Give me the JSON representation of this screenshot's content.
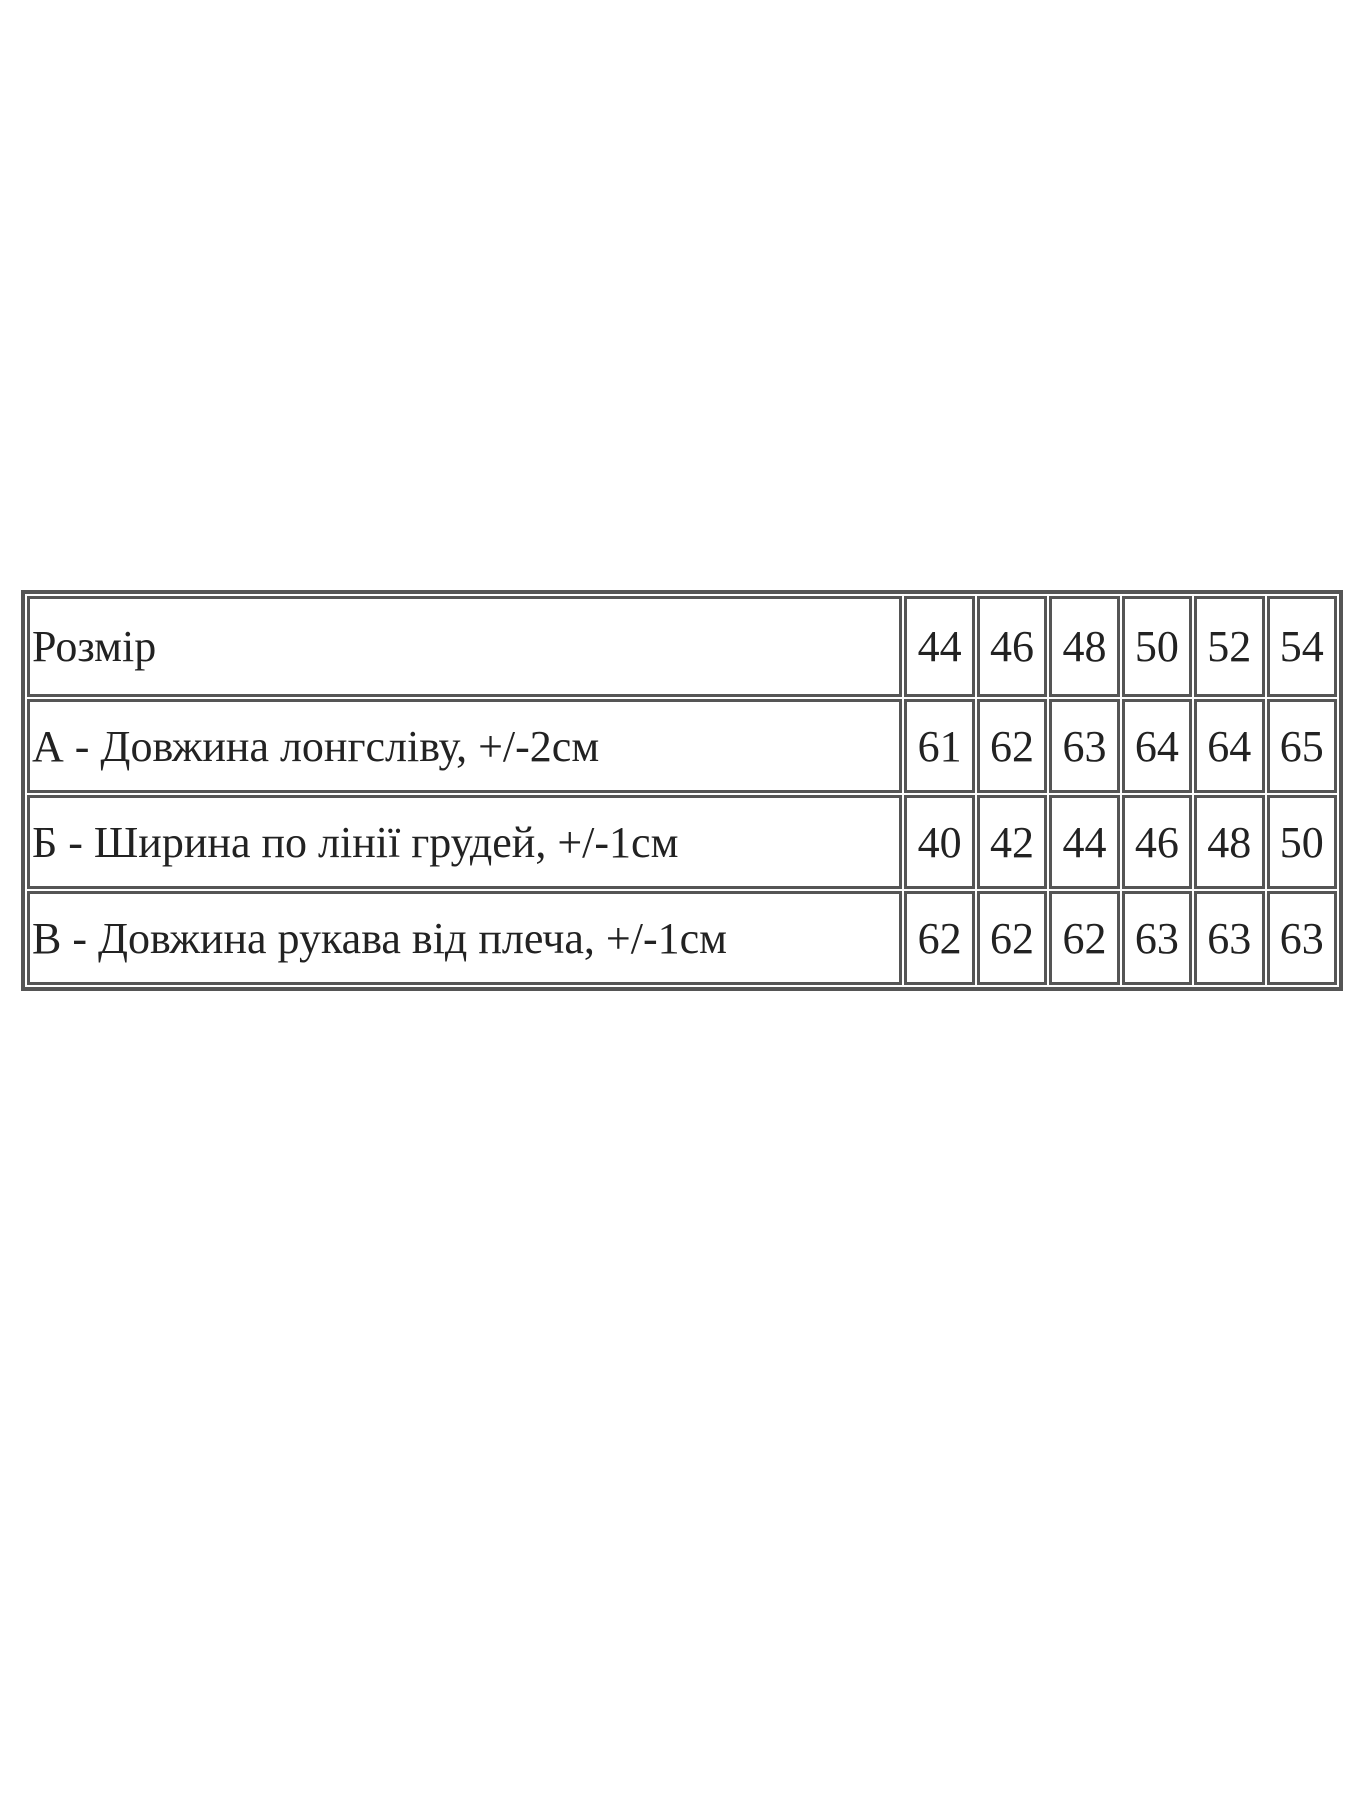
{
  "table": {
    "rows": [
      [
        "Розмір",
        44,
        46,
        48,
        50,
        52,
        54
      ],
      [
        "А - Довжина лонгсліву, +/-2см",
        61,
        62,
        63,
        64,
        64,
        65
      ],
      [
        "Б - Ширина по лінії грудей, +/-1см",
        40,
        42,
        44,
        46,
        48,
        50
      ],
      [
        "В - Довжина рукава від плеча, +/-1см",
        62,
        62,
        62,
        63,
        63,
        63
      ]
    ]
  }
}
